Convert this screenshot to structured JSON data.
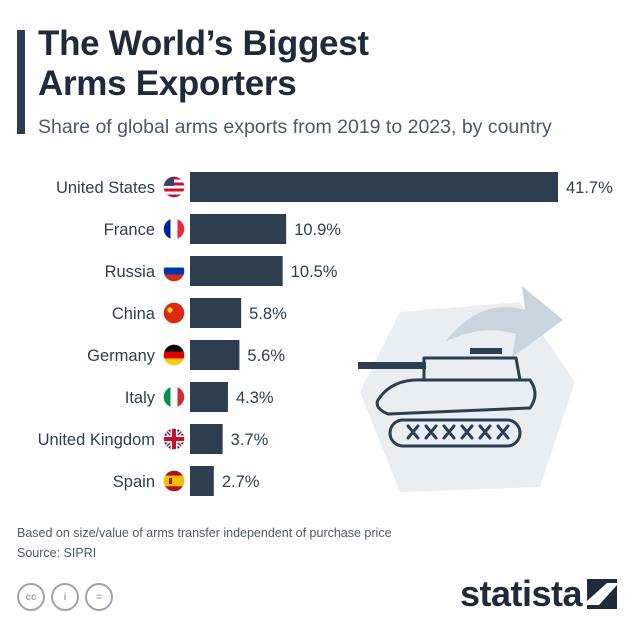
{
  "title_line1": "The World’s Biggest",
  "title_line2": "Arms Exporters",
  "subtitle": "Share of global arms exports from 2019 to 2023, by country",
  "footnote": "Based on size/value of arms transfer independent of purchase price",
  "source": "Source: SIPRI",
  "brand": "statista",
  "license_icons": [
    "cc-icon",
    "by-icon",
    "nd-icon"
  ],
  "license_glyphs": [
    "cc",
    "i",
    "="
  ],
  "colors": {
    "bar": "#2c3e50",
    "title": "#1d2b3a",
    "illustration_bg": "#e9eef2"
  },
  "chart_data": {
    "type": "bar",
    "orientation": "horizontal",
    "title": "The World’s Biggest Arms Exporters",
    "subtitle": "Share of global arms exports from 2019 to 2023, by country",
    "categories": [
      "United States",
      "France",
      "Russia",
      "China",
      "Germany",
      "Italy",
      "United Kingdom",
      "Spain"
    ],
    "values": [
      41.7,
      10.9,
      10.5,
      5.8,
      5.6,
      4.3,
      3.7,
      2.7
    ],
    "value_labels": [
      "41.7%",
      "10.9%",
      "10.5%",
      "5.8%",
      "5.6%",
      "4.3%",
      "3.7%",
      "2.7%"
    ],
    "flags": [
      "us-flag-icon",
      "france-flag-icon",
      "russia-flag-icon",
      "china-flag-icon",
      "germany-flag-icon",
      "italy-flag-icon",
      "uk-flag-icon",
      "spain-flag-icon"
    ],
    "unit": "%",
    "xlim": [
      0,
      41.7
    ],
    "grid": false,
    "legend": "none"
  }
}
